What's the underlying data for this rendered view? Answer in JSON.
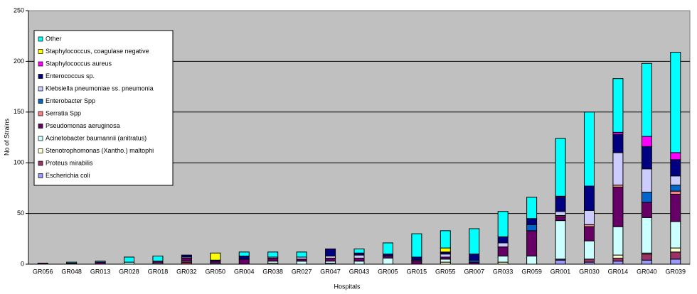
{
  "chart_data": {
    "type": "bar",
    "stacked": true,
    "x_label": "Hospitals",
    "y_label": "No of Strains",
    "categories": [
      "GR056",
      "GR048",
      "GR013",
      "GR028",
      "GR018",
      "GR032",
      "GR050",
      "GR004",
      "GR038",
      "GR027",
      "GR047",
      "GR043",
      "GR005",
      "GR015",
      "GR055",
      "GR007",
      "GR033",
      "GR059",
      "GR001",
      "GR030",
      "GR014",
      "GR040",
      "GR039"
    ],
    "series": [
      {
        "name": "Escherichia coli",
        "color": "#9999ff",
        "values": [
          0,
          0,
          0,
          0,
          0,
          0,
          1,
          0,
          0,
          0,
          1,
          0,
          0,
          0,
          0,
          0,
          0,
          0,
          4,
          2,
          3,
          4,
          5
        ]
      },
      {
        "name": "Proteus mirabilis",
        "color": "#993366",
        "values": [
          0,
          0,
          0,
          0,
          0,
          2,
          0,
          0,
          0,
          0,
          0,
          0,
          0,
          0,
          0,
          0,
          0,
          0,
          1,
          3,
          3,
          6,
          7
        ]
      },
      {
        "name": "Stenotrophomonas (Xantho.) maltophi",
        "color": "#ffffcc",
        "values": [
          0,
          0,
          0,
          0,
          0,
          1,
          0,
          0,
          1,
          0,
          0,
          0,
          0,
          0,
          2,
          0,
          2,
          0,
          0,
          0,
          3,
          1,
          4
        ]
      },
      {
        "name": "Acinetobacter baumannii (anitratus)",
        "color": "#ccffff",
        "values": [
          0,
          0,
          0,
          2,
          1,
          0,
          0,
          0,
          2,
          3,
          2,
          3,
          6,
          0,
          3,
          0,
          6,
          8,
          38,
          18,
          28,
          35,
          26
        ]
      },
      {
        "name": "Pseudomonas aeruginosa",
        "color": "#660066",
        "values": [
          1,
          1,
          2,
          0,
          2,
          3,
          2,
          5,
          3,
          2,
          3,
          3,
          2,
          3,
          2,
          2,
          9,
          25,
          4,
          14,
          39,
          15,
          27
        ]
      },
      {
        "name": "Serratia Spp",
        "color": "#ff8080",
        "values": [
          0,
          0,
          0,
          0,
          0,
          0,
          0,
          0,
          0,
          0,
          0,
          0,
          0,
          0,
          0,
          0,
          0,
          0,
          1,
          2,
          2,
          0,
          3
        ]
      },
      {
        "name": "Enterobacter Spp",
        "color": "#0066cc",
        "values": [
          0,
          0,
          0,
          0,
          0,
          0,
          1,
          0,
          0,
          0,
          0,
          0,
          0,
          0,
          0,
          2,
          0,
          6,
          0,
          0,
          0,
          10,
          6
        ]
      },
      {
        "name": "Klebsiella pneumoniae ss. pneumonia",
        "color": "#ccccff",
        "values": [
          0,
          0,
          0,
          0,
          0,
          1,
          0,
          0,
          1,
          2,
          2,
          3,
          0,
          1,
          3,
          0,
          4,
          0,
          4,
          14,
          32,
          23,
          9
        ]
      },
      {
        "name": "Enterococcus sp.",
        "color": "#000080",
        "values": [
          0,
          0,
          0,
          0,
          0,
          2,
          0,
          3,
          0,
          0,
          7,
          2,
          2,
          3,
          2,
          6,
          6,
          6,
          14,
          24,
          18,
          22,
          16
        ]
      },
      {
        "name": "Staphylococcus aureus",
        "color": "#ff00ff",
        "values": [
          0,
          0,
          0,
          0,
          0,
          0,
          0,
          0,
          0,
          0,
          0,
          0,
          0,
          0,
          0,
          0,
          0,
          0,
          1,
          0,
          2,
          10,
          7
        ]
      },
      {
        "name": "Staphylococcus, coagulase negative",
        "color": "#ffff00",
        "values": [
          0,
          0,
          0,
          0,
          0,
          0,
          7,
          0,
          0,
          0,
          0,
          0,
          0,
          0,
          4,
          0,
          0,
          0,
          0,
          0,
          0,
          0,
          0
        ]
      },
      {
        "name": "Other",
        "color": "#00ffff",
        "values": [
          0,
          1,
          1,
          5,
          5,
          0,
          0,
          4,
          5,
          5,
          0,
          4,
          11,
          23,
          17,
          25,
          25,
          21,
          57,
          73,
          53,
          72,
          99
        ]
      }
    ],
    "ylim": [
      0,
      250
    ],
    "yticks": [
      0,
      50,
      100,
      150,
      200,
      250
    ],
    "grid": true,
    "legend": "upper left"
  }
}
